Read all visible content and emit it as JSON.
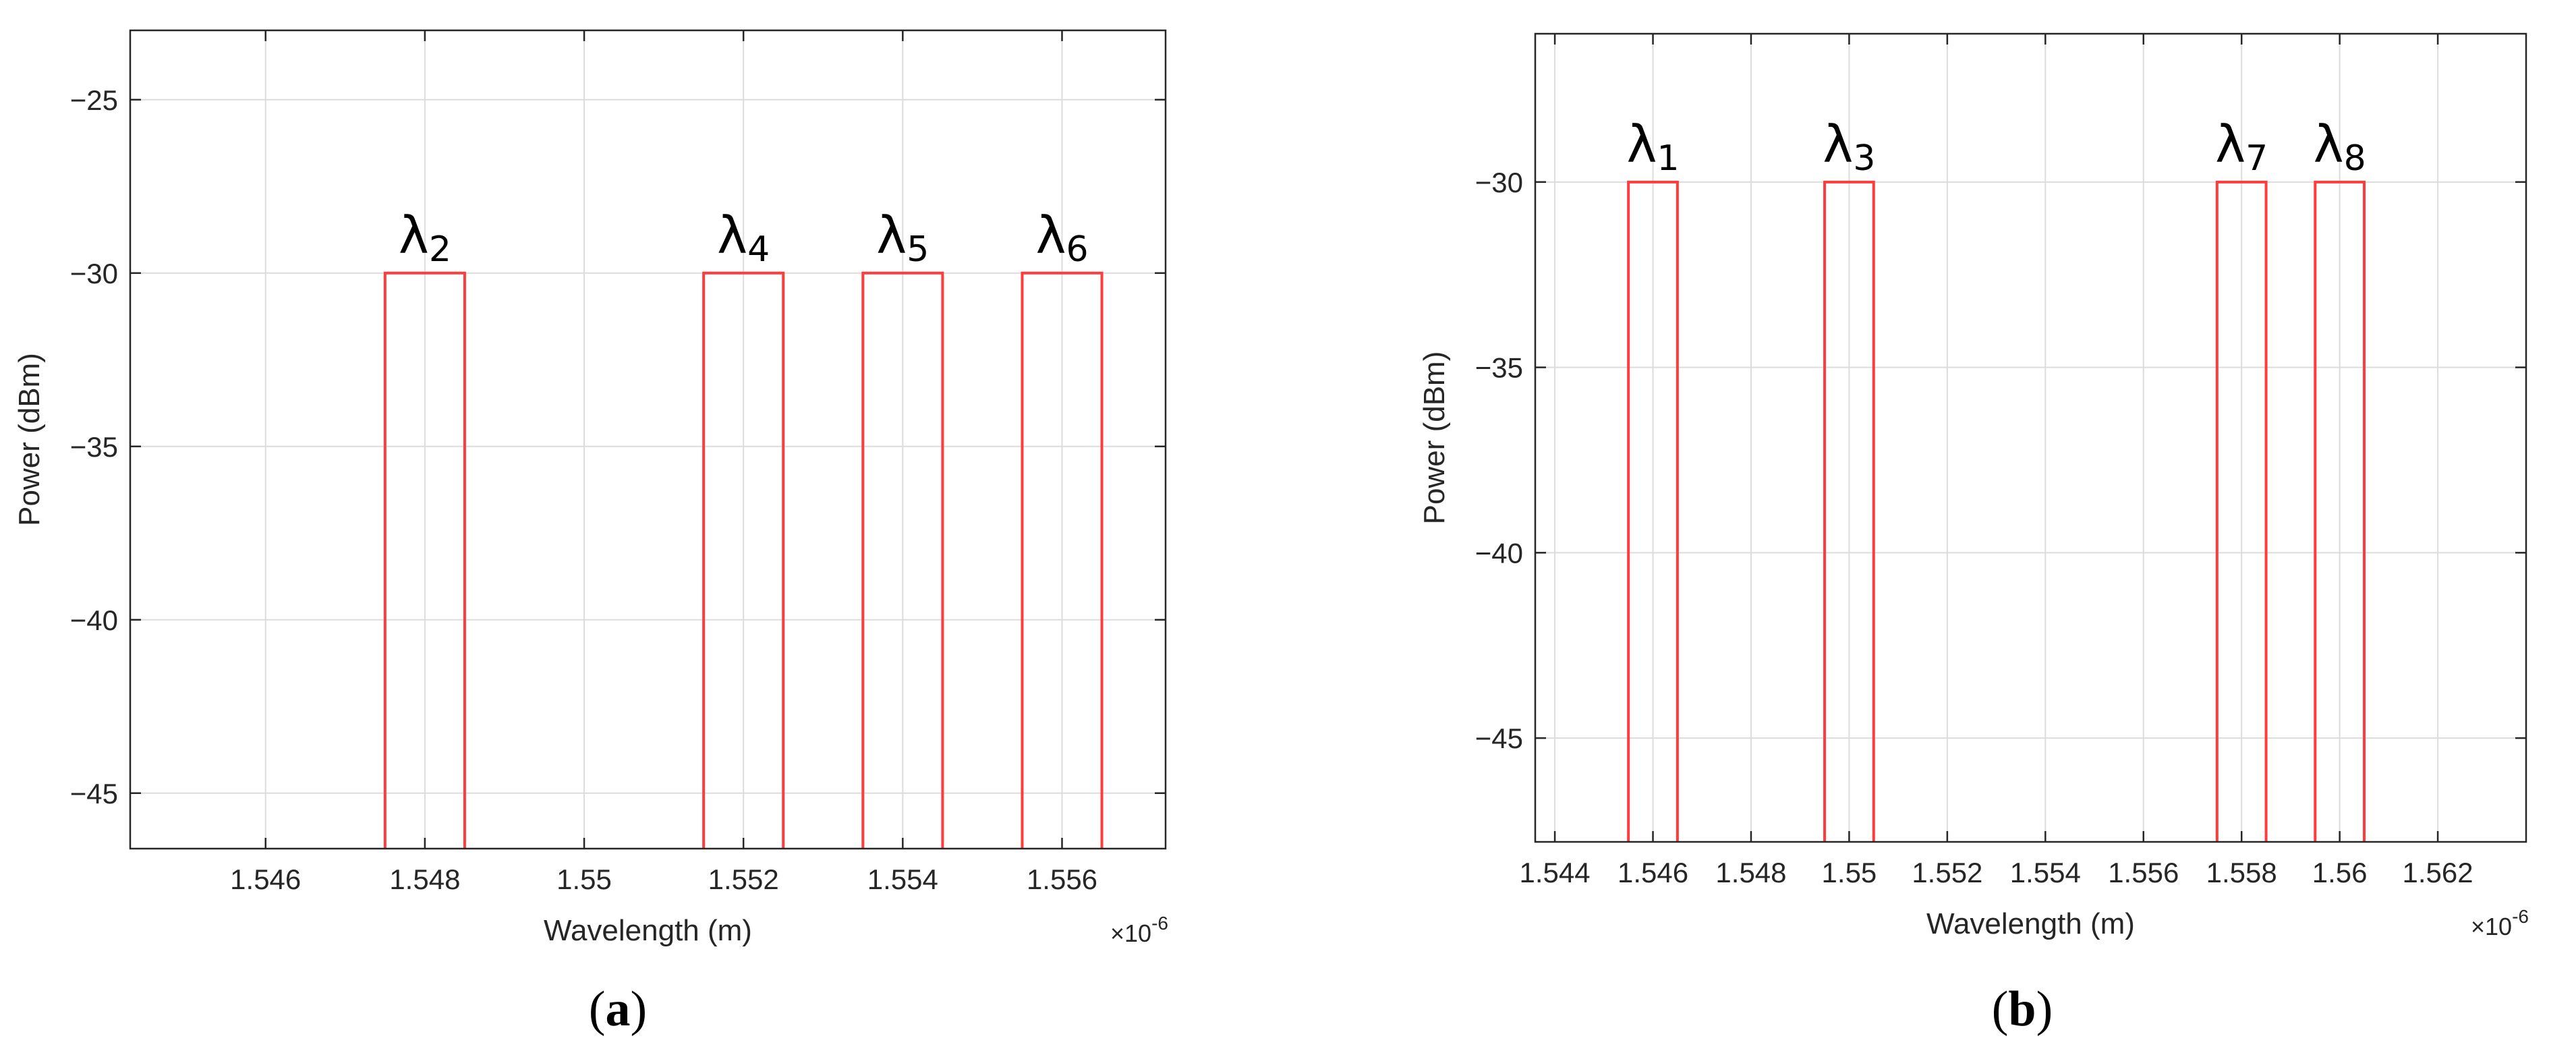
{
  "chart_data": [
    {
      "type": "line",
      "caption": "a",
      "xlabel": "Wavelength (m)",
      "ylabel": "Power (dBm)",
      "x_exponent_label": "×10",
      "x_exponent_power": "-6",
      "xlim": [
        1.5443,
        1.5573
      ],
      "ylim": [
        -46.6,
        -23
      ],
      "x_ticks": [
        1.546,
        1.548,
        1.55,
        1.552,
        1.554,
        1.556
      ],
      "x_tick_labels": [
        "1.546",
        "1.548",
        "1.55",
        "1.552",
        "1.554",
        "1.556"
      ],
      "y_ticks": [
        -25,
        -30,
        -35,
        -40,
        -45
      ],
      "y_tick_labels": [
        "−25",
        "−30",
        "−35",
        "−40",
        "−45"
      ],
      "grid": true,
      "series_color": "#ff3b3b",
      "peaks": [
        {
          "label": "λ",
          "sub": "2",
          "x_start": 1.5475,
          "x_end": 1.5485,
          "y": -30
        },
        {
          "label": "λ",
          "sub": "4",
          "x_start": 1.5515,
          "x_end": 1.5525,
          "y": -30
        },
        {
          "label": "λ",
          "sub": "5",
          "x_start": 1.5535,
          "x_end": 1.5545,
          "y": -30
        },
        {
          "label": "λ",
          "sub": "6",
          "x_start": 1.5555,
          "x_end": 1.5565,
          "y": -30
        }
      ]
    },
    {
      "type": "line",
      "caption": "b",
      "xlabel": "Wavelength (m)",
      "ylabel": "Power (dBm)",
      "x_exponent_label": "×10",
      "x_exponent_power": "-6",
      "xlim": [
        1.5436,
        1.5638
      ],
      "ylim": [
        -47.8,
        -26
      ],
      "x_ticks": [
        1.544,
        1.546,
        1.548,
        1.55,
        1.552,
        1.554,
        1.556,
        1.558,
        1.56,
        1.562
      ],
      "x_tick_labels": [
        "1.544",
        "1.546",
        "1.548",
        "1.55",
        "1.552",
        "1.554",
        "1.556",
        "1.558",
        "1.56",
        "1.562"
      ],
      "y_ticks": [
        -30,
        -35,
        -40,
        -45
      ],
      "y_tick_labels": [
        "−30",
        "−35",
        "−40",
        "−45"
      ],
      "grid": true,
      "series_color": "#ff3b3b",
      "peaks": [
        {
          "label": "λ",
          "sub": "1",
          "x_start": 1.5455,
          "x_end": 1.5465,
          "y": -30
        },
        {
          "label": "λ",
          "sub": "3",
          "x_start": 1.5495,
          "x_end": 1.5505,
          "y": -30
        },
        {
          "label": "λ",
          "sub": "7",
          "x_start": 1.5575,
          "x_end": 1.5585,
          "y": -30
        },
        {
          "label": "λ",
          "sub": "8",
          "x_start": 1.5595,
          "x_end": 1.5605,
          "y": -30
        }
      ]
    }
  ]
}
